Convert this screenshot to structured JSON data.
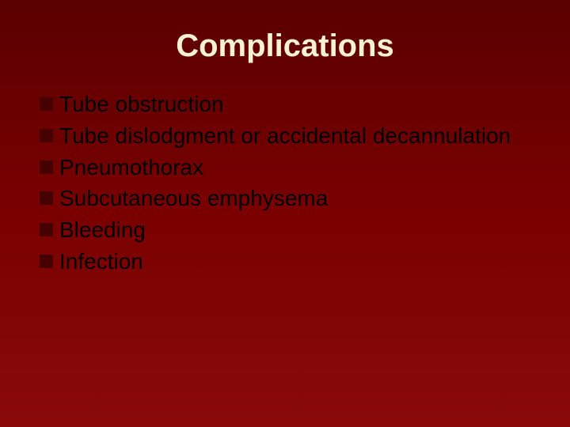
{
  "slide": {
    "title": "Complications",
    "title_color": "#f7f3d0",
    "title_fontsize": 40,
    "bullet_color": "#460000",
    "bullet_text_color": "#000000",
    "bullet_fontsize": 28,
    "background_gradient_top": "#5a0000",
    "background_gradient_bottom": "#8a0a0a",
    "items": [
      "Tube obstruction",
      "Tube dislodgment or accidental decannulation",
      "Pneumothorax",
      "Subcutaneous emphysema",
      "Bleeding",
      "Infection"
    ]
  }
}
